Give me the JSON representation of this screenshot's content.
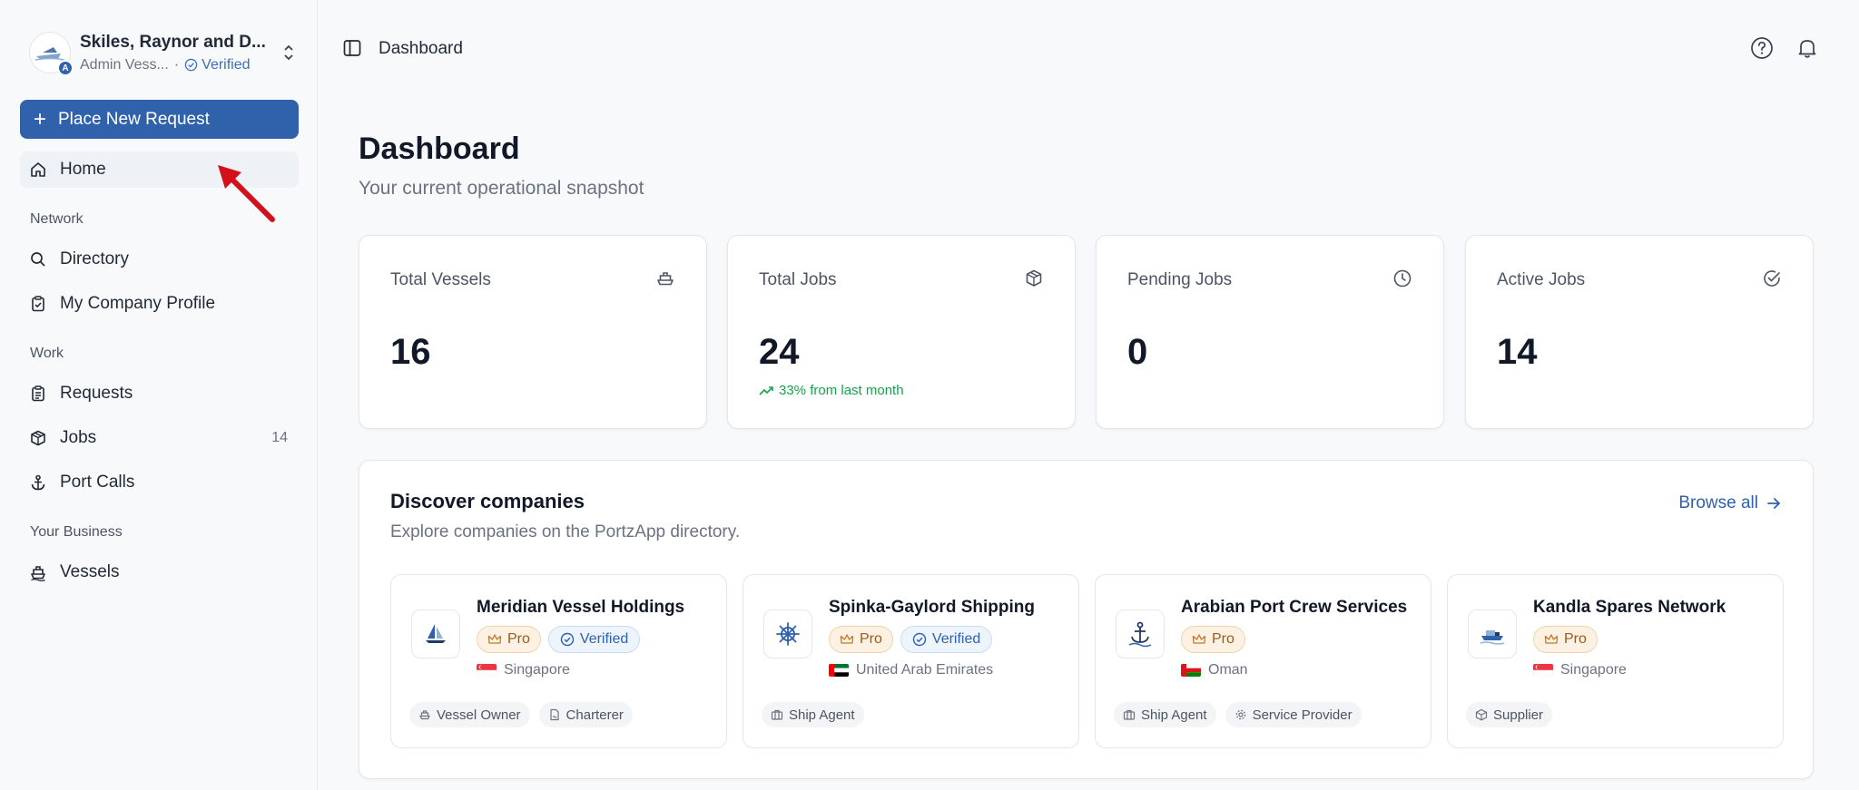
{
  "org": {
    "name": "Skiles, Raynor and D...",
    "role": "Admin Vess...",
    "separator": "·",
    "verified": "Verified",
    "badge_letter": "A"
  },
  "sidebar": {
    "primary_button": "Place New Request",
    "home": "Home",
    "sections": {
      "network": "Network",
      "work": "Work",
      "business": "Your Business"
    },
    "items": {
      "directory": "Directory",
      "company_profile": "My Company Profile",
      "requests": "Requests",
      "jobs": "Jobs",
      "jobs_count": "14",
      "port_calls": "Port Calls",
      "vessels": "Vessels"
    }
  },
  "topbar": {
    "breadcrumb": "Dashboard"
  },
  "main": {
    "title": "Dashboard",
    "subtitle": "Your current operational snapshot",
    "stats": [
      {
        "label": "Total Vessels",
        "value": "16",
        "icon": "ship-icon"
      },
      {
        "label": "Total Jobs",
        "value": "24",
        "trend": "33% from last month",
        "icon": "package-icon"
      },
      {
        "label": "Pending Jobs",
        "value": "0",
        "icon": "clock-icon"
      },
      {
        "label": "Active Jobs",
        "value": "14",
        "icon": "check-circle-icon"
      }
    ]
  },
  "discover": {
    "title": "Discover companies",
    "subtitle": "Explore companies on the PortzApp directory.",
    "browse_all": "Browse all",
    "companies": [
      {
        "name": "Meridian Vessel Holdings",
        "pro": "Pro",
        "verified": "Verified",
        "country": "Singapore",
        "tags": [
          "Vessel Owner",
          "Charterer"
        ]
      },
      {
        "name": "Spinka-Gaylord Shipping",
        "pro": "Pro",
        "verified": "Verified",
        "country": "United Arab Emirates",
        "tags": [
          "Ship Agent"
        ]
      },
      {
        "name": "Arabian Port Crew Services",
        "pro": "Pro",
        "country": "Oman",
        "tags": [
          "Ship Agent",
          "Service Provider"
        ]
      },
      {
        "name": "Kandla Spares Network",
        "pro": "Pro",
        "country": "Singapore",
        "tags": [
          "Supplier"
        ]
      }
    ]
  },
  "colors": {
    "primary": "#2f62aa",
    "success": "#16a34a",
    "pro_text": "#9a5b17",
    "annotation": "#d4111b"
  }
}
